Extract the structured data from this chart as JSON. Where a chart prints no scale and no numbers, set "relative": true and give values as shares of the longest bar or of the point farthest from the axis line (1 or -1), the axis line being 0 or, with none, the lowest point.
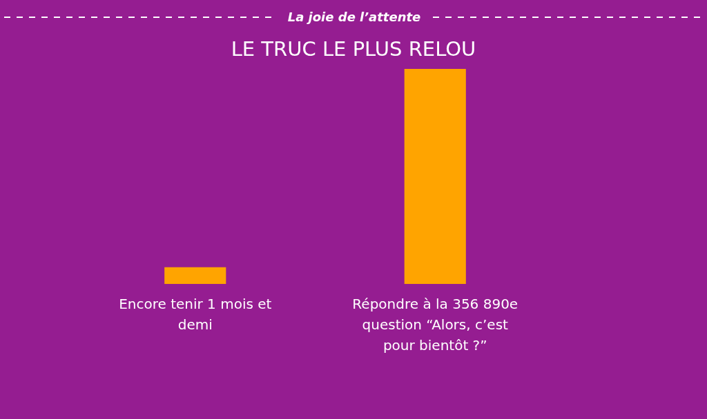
{
  "chart_data": {
    "type": "bar",
    "title": "La joie de l’attente",
    "subtitle": "LE TRUC LE PLUS RELOU",
    "categories": [
      "Encore tenir 1 mois et demi",
      "Répondre à la 356 890e question “Alors, c’est pour bientôt ?”"
    ],
    "values": [
      0.078,
      1
    ],
    "color": "#ffa400",
    "relative": true
  }
}
